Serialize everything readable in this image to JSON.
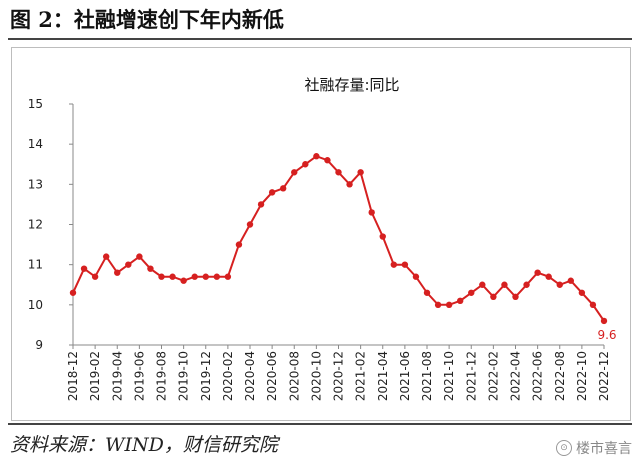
{
  "figure": {
    "title": "图 2：社融增速创下年内新低",
    "source": "资料来源：WIND，财信研究院",
    "watermark": "楼市喜言"
  },
  "chart_data": {
    "type": "line",
    "title": "社融存量:同比",
    "xlabel": "",
    "ylabel": "",
    "ylim": [
      9,
      15
    ],
    "yticks": [
      9,
      10,
      11,
      12,
      13,
      14,
      15
    ],
    "grid": false,
    "legend": "none",
    "line_color": "#d62020",
    "x_tick_labels": [
      "2018-12",
      "2019-02",
      "2019-04",
      "2019-06",
      "2019-08",
      "2019-10",
      "2019-12",
      "2020-02",
      "2020-04",
      "2020-06",
      "2020-08",
      "2020-10",
      "2020-12",
      "2021-02",
      "2021-04",
      "2021-06",
      "2021-08",
      "2021-10",
      "2021-12",
      "2022-02",
      "2022-04",
      "2022-06",
      "2022-08",
      "2022-10",
      "2022-12"
    ],
    "x": [
      "2018-12",
      "2019-01",
      "2019-02",
      "2019-03",
      "2019-04",
      "2019-05",
      "2019-06",
      "2019-07",
      "2019-08",
      "2019-09",
      "2019-10",
      "2019-11",
      "2019-12",
      "2020-01",
      "2020-02",
      "2020-03",
      "2020-04",
      "2020-05",
      "2020-06",
      "2020-07",
      "2020-08",
      "2020-09",
      "2020-10",
      "2020-11",
      "2020-12",
      "2021-01",
      "2021-02",
      "2021-03",
      "2021-04",
      "2021-05",
      "2021-06",
      "2021-07",
      "2021-08",
      "2021-09",
      "2021-10",
      "2021-11",
      "2021-12",
      "2022-01",
      "2022-02",
      "2022-03",
      "2022-04",
      "2022-05",
      "2022-06",
      "2022-07",
      "2022-08",
      "2022-09",
      "2022-10",
      "2022-11",
      "2022-12"
    ],
    "values": [
      10.3,
      10.9,
      10.7,
      11.2,
      10.8,
      11.0,
      11.2,
      10.9,
      10.7,
      10.7,
      10.6,
      10.7,
      10.7,
      10.7,
      10.7,
      11.5,
      12.0,
      12.5,
      12.8,
      12.9,
      13.3,
      13.5,
      13.7,
      13.6,
      13.3,
      13.0,
      13.3,
      12.3,
      11.7,
      11.0,
      11.0,
      10.7,
      10.3,
      10.0,
      10.0,
      10.1,
      10.3,
      10.5,
      10.2,
      10.5,
      10.2,
      10.5,
      10.8,
      10.7,
      10.5,
      10.6,
      10.3,
      10.0,
      9.6
    ],
    "end_label": "9.6"
  }
}
